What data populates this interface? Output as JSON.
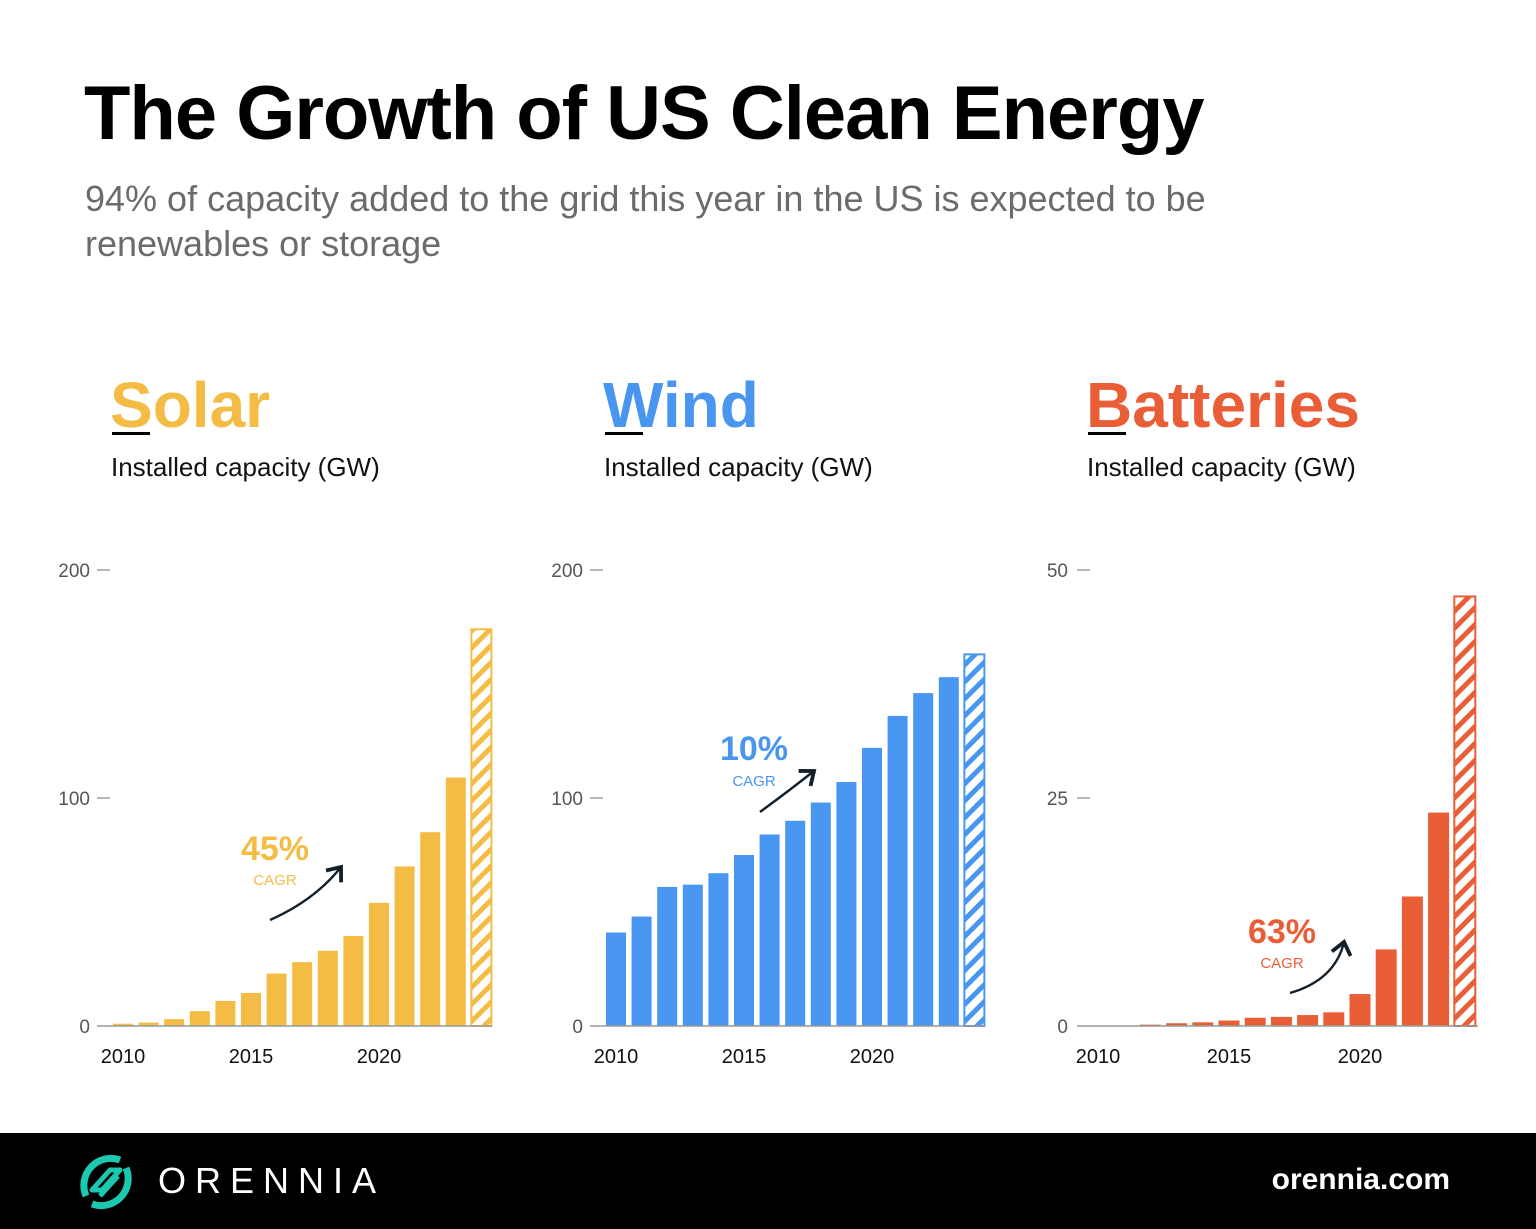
{
  "header": {
    "title": "The Growth of US Clean Energy",
    "subtitle": "94% of capacity added to the grid this year in the US is expected to be renewables or storage"
  },
  "chart_data": [
    {
      "type": "bar",
      "title": "Solar",
      "ylabel": "Installed capacity (GW)",
      "color": "#F4BC44",
      "x": [
        2010,
        2011,
        2012,
        2013,
        2014,
        2015,
        2016,
        2017,
        2018,
        2019,
        2020,
        2021,
        2022,
        2023,
        2024
      ],
      "values": [
        1,
        1.5,
        3,
        6.5,
        11,
        14.5,
        23,
        28,
        33,
        39.5,
        54,
        70,
        85,
        109,
        174
      ],
      "hatched_last": true,
      "ylim": [
        0,
        200
      ],
      "yticks": [
        0,
        100,
        200
      ],
      "xticks": [
        2010,
        2015,
        2020
      ],
      "annotation": {
        "value": "45%",
        "label": "CAGR"
      }
    },
    {
      "type": "bar",
      "title": "Wind",
      "ylabel": "Installed capacity (GW)",
      "color": "#4896F0",
      "x": [
        2010,
        2011,
        2012,
        2013,
        2014,
        2015,
        2016,
        2017,
        2018,
        2019,
        2020,
        2021,
        2022,
        2023,
        2024
      ],
      "values": [
        41,
        48,
        61,
        62,
        67,
        75,
        84,
        90,
        98,
        107,
        122,
        136,
        146,
        153,
        163
      ],
      "hatched_last": true,
      "ylim": [
        0,
        200
      ],
      "yticks": [
        0,
        100,
        200
      ],
      "xticks": [
        2010,
        2015,
        2020
      ],
      "annotation": {
        "value": "10%",
        "label": "CAGR"
      }
    },
    {
      "type": "bar",
      "title": "Batteries",
      "ylabel": "Installed capacity (GW)",
      "color": "#E95E37",
      "x": [
        2010,
        2011,
        2012,
        2013,
        2014,
        2015,
        2016,
        2017,
        2018,
        2019,
        2020,
        2021,
        2022,
        2023,
        2024
      ],
      "values": [
        0.05,
        0.05,
        0.15,
        0.3,
        0.4,
        0.6,
        0.9,
        1.0,
        1.2,
        1.5,
        3.5,
        8.4,
        14.2,
        23.4,
        47.1
      ],
      "hatched_last": true,
      "ylim": [
        0,
        50
      ],
      "yticks": [
        0,
        25,
        50
      ],
      "xticks": [
        2010,
        2015,
        2020
      ],
      "annotation": {
        "value": "63%",
        "label": "CAGR"
      }
    }
  ],
  "footer": {
    "brand": "ORENNIA",
    "website": "orennia.com",
    "logo_color": "#1BC8B0"
  }
}
